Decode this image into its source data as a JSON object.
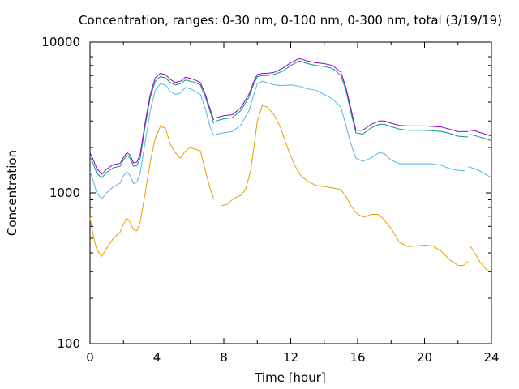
{
  "chart_data": {
    "type": "line",
    "title": "Concentration, ranges: 0-30 nm, 0-100 nm, 0-300 nm, total (3/19/19)",
    "xlabel": "Time [hour]",
    "ylabel": "Concentration",
    "xlim": [
      0,
      24
    ],
    "ylim": [
      100,
      10000
    ],
    "yscale": "log",
    "grid": false,
    "legend": "none",
    "x_ticks": [
      "0",
      "4",
      "8",
      "12",
      "16",
      "20",
      "24"
    ],
    "x_tick_values": [
      0,
      4,
      8,
      12,
      16,
      20,
      24
    ],
    "y_ticks": [
      "100",
      "1000",
      "10000"
    ],
    "y_tick_values": [
      100,
      1000,
      10000
    ],
    "series": [
      {
        "color": "#e69f00",
        "segments": [
          [
            [
              0,
              680
            ],
            [
              0.2,
              520
            ],
            [
              0.4,
              420
            ],
            [
              0.7,
              380
            ],
            [
              1.0,
              430
            ],
            [
              1.4,
              500
            ],
            [
              1.8,
              550
            ],
            [
              2.0,
              620
            ],
            [
              2.2,
              680
            ],
            [
              2.4,
              640
            ],
            [
              2.6,
              570
            ],
            [
              2.8,
              560
            ],
            [
              3.0,
              640
            ],
            [
              3.3,
              1000
            ],
            [
              3.6,
              1600
            ],
            [
              3.9,
              2300
            ],
            [
              4.2,
              2750
            ],
            [
              4.5,
              2700
            ],
            [
              4.8,
              2100
            ],
            [
              5.1,
              1850
            ],
            [
              5.4,
              1700
            ],
            [
              5.7,
              1900
            ],
            [
              6.0,
              2000
            ],
            [
              6.3,
              1950
            ],
            [
              6.6,
              1900
            ],
            [
              6.9,
              1400
            ],
            [
              7.2,
              1050
            ],
            [
              7.4,
              920
            ]
          ],
          [
            [
              7.8,
              820
            ],
            [
              8.2,
              840
            ],
            [
              8.6,
              920
            ],
            [
              9.0,
              960
            ],
            [
              9.3,
              1050
            ],
            [
              9.6,
              1400
            ],
            [
              9.8,
              2000
            ],
            [
              10.0,
              3000
            ],
            [
              10.3,
              3800
            ],
            [
              10.6,
              3700
            ],
            [
              11.0,
              3300
            ],
            [
              11.4,
              2700
            ],
            [
              11.8,
              2000
            ],
            [
              12.2,
              1550
            ],
            [
              12.6,
              1300
            ],
            [
              13.0,
              1200
            ],
            [
              13.5,
              1120
            ],
            [
              14.0,
              1100
            ],
            [
              14.5,
              1080
            ],
            [
              15.0,
              1050
            ],
            [
              15.3,
              950
            ],
            [
              15.6,
              820
            ],
            [
              16.0,
              720
            ],
            [
              16.4,
              690
            ],
            [
              16.8,
              720
            ],
            [
              17.2,
              720
            ],
            [
              17.5,
              680
            ],
            [
              18.0,
              580
            ],
            [
              18.5,
              470
            ],
            [
              19.0,
              440
            ],
            [
              19.5,
              445
            ],
            [
              20.0,
              450
            ],
            [
              20.5,
              445
            ],
            [
              21.0,
              410
            ],
            [
              21.5,
              360
            ],
            [
              22.0,
              330
            ],
            [
              22.3,
              330
            ],
            [
              22.6,
              350
            ]
          ],
          [
            [
              22.7,
              450
            ],
            [
              23.0,
              400
            ],
            [
              23.3,
              350
            ],
            [
              23.7,
              310
            ],
            [
              24.0,
              295
            ]
          ]
        ]
      },
      {
        "color": "#56b4e9",
        "segments": [
          [
            [
              0,
              1380
            ],
            [
              0.2,
              1200
            ],
            [
              0.4,
              1000
            ],
            [
              0.7,
              910
            ],
            [
              1.0,
              1000
            ],
            [
              1.4,
              1100
            ],
            [
              1.8,
              1160
            ],
            [
              2.0,
              1300
            ],
            [
              2.2,
              1380
            ],
            [
              2.4,
              1300
            ],
            [
              2.6,
              1150
            ],
            [
              2.8,
              1180
            ],
            [
              3.0,
              1350
            ],
            [
              3.3,
              2200
            ],
            [
              3.6,
              3500
            ],
            [
              3.9,
              4800
            ],
            [
              4.2,
              5300
            ],
            [
              4.5,
              5200
            ],
            [
              4.8,
              4700
            ],
            [
              5.1,
              4500
            ],
            [
              5.4,
              4600
            ],
            [
              5.7,
              5000
            ],
            [
              6.0,
              4900
            ],
            [
              6.3,
              4700
            ],
            [
              6.6,
              4500
            ],
            [
              6.9,
              3600
            ],
            [
              7.2,
              2700
            ],
            [
              7.4,
              2400
            ]
          ],
          [
            [
              7.5,
              2450
            ],
            [
              8.0,
              2500
            ],
            [
              8.5,
              2550
            ],
            [
              9.0,
              2800
            ],
            [
              9.5,
              3500
            ],
            [
              9.8,
              4500
            ],
            [
              10.0,
              5300
            ],
            [
              10.3,
              5500
            ],
            [
              10.6,
              5400
            ],
            [
              11.0,
              5200
            ],
            [
              11.5,
              5150
            ],
            [
              12.0,
              5200
            ],
            [
              12.5,
              5100
            ],
            [
              13.0,
              4900
            ],
            [
              13.5,
              4800
            ],
            [
              14.0,
              4500
            ],
            [
              14.5,
              4200
            ],
            [
              15.0,
              3700
            ],
            [
              15.3,
              2800
            ],
            [
              15.6,
              2100
            ],
            [
              15.9,
              1700
            ],
            [
              16.3,
              1620
            ],
            [
              16.8,
              1700
            ],
            [
              17.3,
              1850
            ],
            [
              17.6,
              1820
            ],
            [
              18.0,
              1650
            ],
            [
              18.5,
              1560
            ],
            [
              19.0,
              1560
            ],
            [
              19.5,
              1560
            ],
            [
              20.0,
              1560
            ],
            [
              20.5,
              1560
            ],
            [
              21.0,
              1520
            ],
            [
              21.5,
              1450
            ],
            [
              22.0,
              1410
            ],
            [
              22.4,
              1400
            ]
          ],
          [
            [
              22.6,
              1490
            ],
            [
              23.0,
              1450
            ],
            [
              23.4,
              1380
            ],
            [
              23.7,
              1320
            ],
            [
              24.0,
              1260
            ]
          ]
        ]
      },
      {
        "color": "#009e73",
        "segments": [
          [
            [
              0,
              1750
            ],
            [
              0.2,
              1550
            ],
            [
              0.4,
              1350
            ],
            [
              0.7,
              1260
            ],
            [
              1.0,
              1370
            ],
            [
              1.4,
              1470
            ],
            [
              1.8,
              1500
            ],
            [
              2.0,
              1650
            ],
            [
              2.2,
              1780
            ],
            [
              2.4,
              1700
            ],
            [
              2.6,
              1500
            ],
            [
              2.8,
              1520
            ],
            [
              3.0,
              1700
            ],
            [
              3.3,
              2800
            ],
            [
              3.6,
              4300
            ],
            [
              3.9,
              5500
            ],
            [
              4.2,
              5900
            ],
            [
              4.5,
              5800
            ],
            [
              4.8,
              5400
            ],
            [
              5.1,
              5200
            ],
            [
              5.4,
              5300
            ],
            [
              5.7,
              5600
            ],
            [
              6.0,
              5500
            ],
            [
              6.3,
              5400
            ],
            [
              6.6,
              5200
            ],
            [
              6.9,
              4300
            ],
            [
              7.2,
              3400
            ],
            [
              7.4,
              2900
            ]
          ],
          [
            [
              7.5,
              3000
            ],
            [
              8.0,
              3100
            ],
            [
              8.5,
              3150
            ],
            [
              9.0,
              3500
            ],
            [
              9.5,
              4300
            ],
            [
              9.8,
              5300
            ],
            [
              10.0,
              5900
            ],
            [
              10.3,
              6000
            ],
            [
              10.6,
              6000
            ],
            [
              11.0,
              6100
            ],
            [
              11.5,
              6400
            ],
            [
              12.0,
              7000
            ],
            [
              12.5,
              7500
            ],
            [
              13.0,
              7200
            ],
            [
              13.5,
              7000
            ],
            [
              14.0,
              6900
            ],
            [
              14.5,
              6700
            ],
            [
              15.0,
              6000
            ],
            [
              15.3,
              4800
            ],
            [
              15.6,
              3400
            ],
            [
              15.9,
              2500
            ],
            [
              16.3,
              2450
            ],
            [
              16.8,
              2700
            ],
            [
              17.3,
              2850
            ],
            [
              17.6,
              2850
            ],
            [
              18.0,
              2750
            ],
            [
              18.5,
              2650
            ],
            [
              19.0,
              2600
            ],
            [
              19.5,
              2600
            ],
            [
              20.0,
              2600
            ],
            [
              20.5,
              2580
            ],
            [
              21.0,
              2560
            ],
            [
              21.5,
              2480
            ],
            [
              22.0,
              2380
            ],
            [
              22.6,
              2350
            ]
          ],
          [
            [
              22.7,
              2450
            ],
            [
              23.0,
              2400
            ],
            [
              23.4,
              2330
            ],
            [
              23.7,
              2280
            ],
            [
              24.0,
              2220
            ]
          ]
        ]
      },
      {
        "color": "#9400d3",
        "segments": [
          [
            [
              0,
              1850
            ],
            [
              0.2,
              1650
            ],
            [
              0.4,
              1450
            ],
            [
              0.7,
              1330
            ],
            [
              1.0,
              1440
            ],
            [
              1.4,
              1540
            ],
            [
              1.8,
              1570
            ],
            [
              2.0,
              1720
            ],
            [
              2.2,
              1850
            ],
            [
              2.4,
              1780
            ],
            [
              2.6,
              1580
            ],
            [
              2.8,
              1600
            ],
            [
              3.0,
              1800
            ],
            [
              3.3,
              2950
            ],
            [
              3.6,
              4500
            ],
            [
              3.9,
              5800
            ],
            [
              4.2,
              6200
            ],
            [
              4.5,
              6100
            ],
            [
              4.8,
              5650
            ],
            [
              5.1,
              5400
            ],
            [
              5.4,
              5500
            ],
            [
              5.7,
              5850
            ],
            [
              6.0,
              5750
            ],
            [
              6.3,
              5600
            ],
            [
              6.6,
              5400
            ],
            [
              6.9,
              4500
            ],
            [
              7.2,
              3550
            ],
            [
              7.4,
              3050
            ]
          ],
          [
            [
              7.5,
              3150
            ],
            [
              8.0,
              3250
            ],
            [
              8.5,
              3300
            ],
            [
              9.0,
              3650
            ],
            [
              9.5,
              4500
            ],
            [
              9.8,
              5500
            ],
            [
              10.0,
              6100
            ],
            [
              10.3,
              6200
            ],
            [
              10.6,
              6200
            ],
            [
              11.0,
              6300
            ],
            [
              11.5,
              6700
            ],
            [
              12.0,
              7300
            ],
            [
              12.5,
              7800
            ],
            [
              13.0,
              7500
            ],
            [
              13.5,
              7300
            ],
            [
              14.0,
              7200
            ],
            [
              14.5,
              7000
            ],
            [
              15.0,
              6300
            ],
            [
              15.3,
              5000
            ],
            [
              15.6,
              3600
            ],
            [
              15.9,
              2600
            ],
            [
              16.3,
              2600
            ],
            [
              16.8,
              2850
            ],
            [
              17.3,
              3000
            ],
            [
              17.6,
              3000
            ],
            [
              18.0,
              2900
            ],
            [
              18.5,
              2800
            ],
            [
              19.0,
              2780
            ],
            [
              19.5,
              2780
            ],
            [
              20.0,
              2780
            ],
            [
              20.5,
              2760
            ],
            [
              21.0,
              2740
            ],
            [
              21.5,
              2650
            ],
            [
              22.0,
              2550
            ],
            [
              22.6,
              2550
            ]
          ],
          [
            [
              22.7,
              2600
            ],
            [
              23.0,
              2580
            ],
            [
              23.4,
              2500
            ],
            [
              23.7,
              2440
            ],
            [
              24.0,
              2380
            ]
          ]
        ]
      }
    ]
  }
}
